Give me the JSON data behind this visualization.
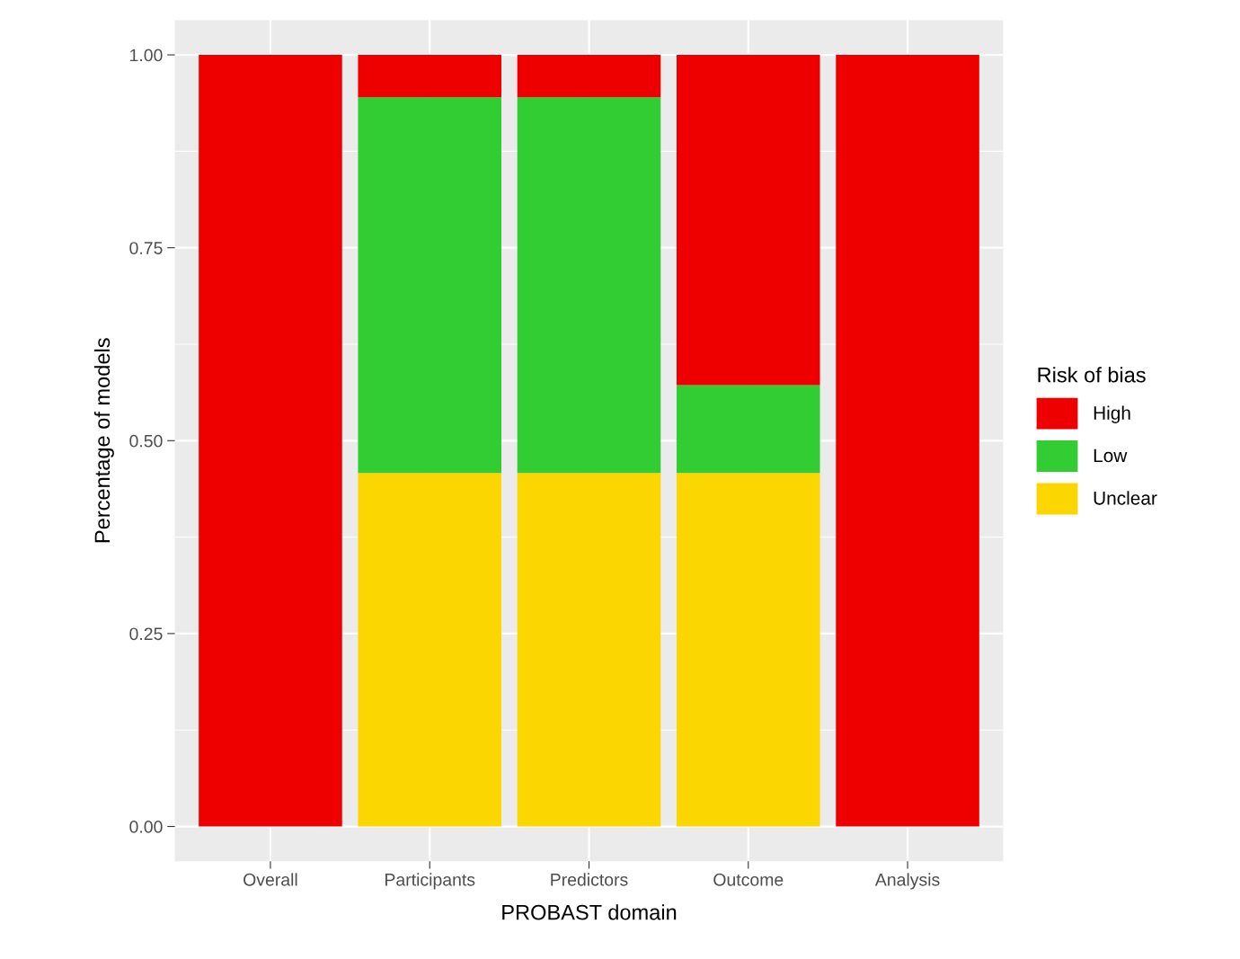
{
  "chart_data": {
    "type": "bar",
    "stacked": true,
    "xlabel": "PROBAST domain",
    "ylabel": "Percentage of models",
    "legend_title": "Risk of bias",
    "legend": "right",
    "grid": true,
    "categories": [
      "Overall",
      "Participants",
      "Predictors",
      "Outcome",
      "Analysis"
    ],
    "series": [
      {
        "name": "Unclear",
        "color": "#fcd600",
        "values": [
          0,
          0.458,
          0.458,
          0.458,
          0
        ]
      },
      {
        "name": "Low",
        "color": "#32cd32",
        "values": [
          0,
          0.487,
          0.487,
          0.114,
          0
        ]
      },
      {
        "name": "High",
        "color": "#ee0000",
        "values": [
          1,
          0.055,
          0.055,
          0.428,
          1
        ]
      }
    ],
    "ylim": [
      -0.045,
      1.045
    ],
    "yticks": [
      {
        "value": 0,
        "label": "0.00"
      },
      {
        "value": 0.25,
        "label": "0.25"
      },
      {
        "value": 0.5,
        "label": "0.50"
      },
      {
        "value": 0.75,
        "label": "0.75"
      },
      {
        "value": 1,
        "label": "1.00"
      }
    ]
  }
}
